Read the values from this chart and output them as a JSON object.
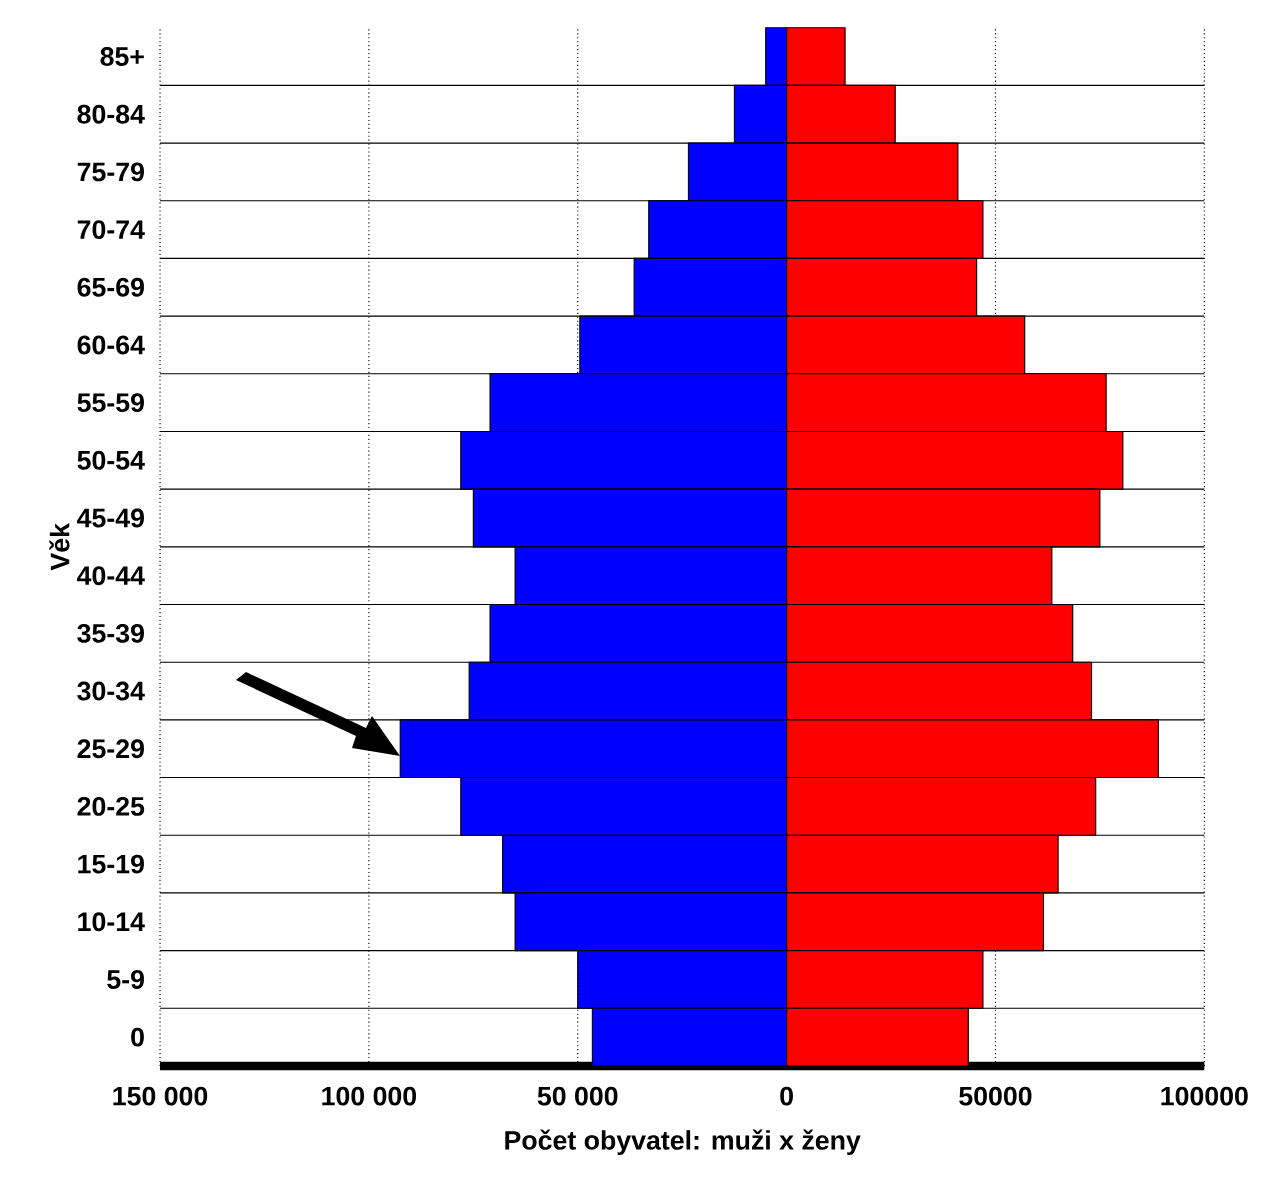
{
  "chart_data": {
    "type": "bar",
    "orientation": "horizontal",
    "stacked": true,
    "xlabel": "Počet obyvatel: muži x ženy",
    "ylabel": "Věk",
    "categories": [
      "85+",
      "80-84",
      "75-79",
      "70-74",
      "65-69",
      "60-64",
      "55-59",
      "50-54",
      "45-49",
      "40-44",
      "35-39",
      "30-34",
      "25-29",
      "20-25",
      "15-19",
      "10-14",
      "5-9",
      "0"
    ],
    "series": [
      {
        "color": "#0000ff",
        "values": [
          -5000,
          -12500,
          -23500,
          -33000,
          -36500,
          -49500,
          -71000,
          -78000,
          -75000,
          -65000,
          -71000,
          -76000,
          -92500,
          -78000,
          -68000,
          -65000,
          -50000,
          -46500
        ]
      },
      {
        "color": "#ff0000",
        "values": [
          14000,
          26000,
          41000,
          47000,
          45500,
          57000,
          76500,
          80500,
          75000,
          63500,
          68500,
          73000,
          89000,
          74000,
          65000,
          61500,
          47000,
          43500
        ]
      }
    ],
    "xlim": [
      -150000,
      100000
    ],
    "xticks": [
      {
        "value": -150000,
        "label": "150 000"
      },
      {
        "value": -100000,
        "label": "100 000"
      },
      {
        "value": -50000,
        "label": "50 000"
      },
      0,
      50000,
      100000
    ],
    "grid": true
  }
}
